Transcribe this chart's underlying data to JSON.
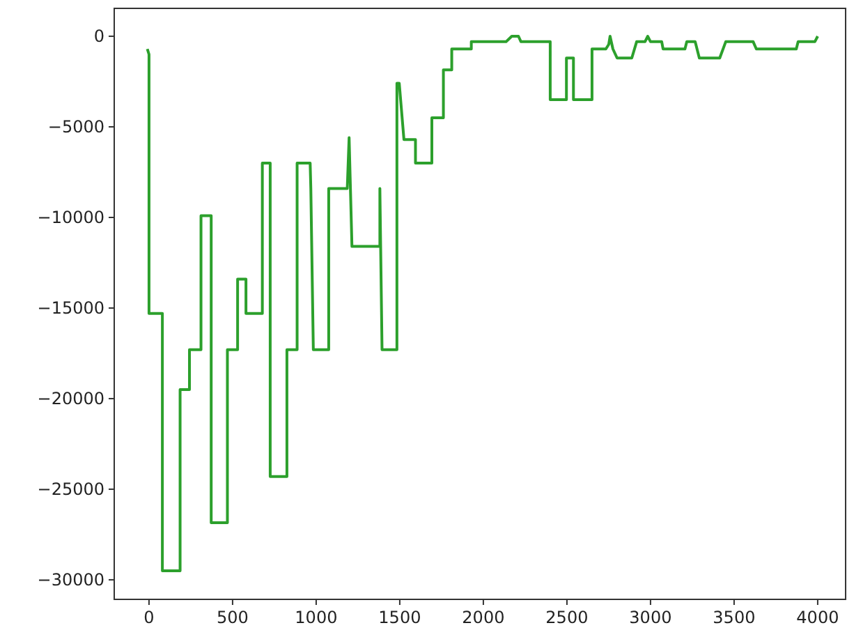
{
  "chart_data": {
    "type": "line",
    "xlim": [
      -208,
      4167
    ],
    "ylim": [
      -31080,
      1540
    ],
    "xticks": [
      0,
      500,
      1000,
      1500,
      2000,
      2500,
      3000,
      3500,
      4000
    ],
    "yticks": [
      {
        "value": 0,
        "label": "0"
      },
      {
        "value": -5000,
        "label": "−5000"
      },
      {
        "value": -10000,
        "label": "−10000"
      },
      {
        "value": -15000,
        "label": "−15000"
      },
      {
        "value": -20000,
        "label": "−20000"
      },
      {
        "value": -25000,
        "label": "−25000"
      },
      {
        "value": -30000,
        "label": "−30000"
      }
    ],
    "grid": false,
    "marker": "none",
    "line_style": "solid",
    "series": [
      {
        "color": "#2ca02c",
        "x": [
          -10,
          0,
          0,
          80,
          80,
          186,
          186,
          242,
          242,
          311,
          311,
          372,
          372,
          469,
          469,
          530,
          530,
          580,
          580,
          678,
          678,
          725,
          725,
          825,
          825,
          886,
          886,
          964,
          968,
          983,
          1075,
          1075,
          1186,
          1197,
          1214,
          1381,
          1381,
          1394,
          1483,
          1483,
          1497,
          1525,
          1594,
          1594,
          1692,
          1692,
          1706,
          1761,
          1761,
          1811,
          1811,
          1928,
          1928,
          2136,
          2170,
          2210,
          2225,
          2400,
          2400,
          2497,
          2497,
          2539,
          2539,
          2650,
          2650,
          2733,
          2750,
          2758,
          2775,
          2800,
          2888,
          2917,
          2967,
          2983,
          3000,
          3067,
          3075,
          3206,
          3217,
          3267,
          3292,
          3414,
          3450,
          3614,
          3633,
          3872,
          3883,
          3983,
          4000
        ],
        "values": [
          -700,
          -1000,
          -15300,
          -15300,
          -29500,
          -29500,
          -19500,
          -19500,
          -17300,
          -17300,
          -9900,
          -9900,
          -26850,
          -26850,
          -17300,
          -17300,
          -13400,
          -13400,
          -15300,
          -15300,
          -7000,
          -7000,
          -24300,
          -24300,
          -17300,
          -17300,
          -7000,
          -7000,
          -8400,
          -17300,
          -17300,
          -8400,
          -8400,
          -5600,
          -11600,
          -11600,
          -8400,
          -17300,
          -17300,
          -2600,
          -2600,
          -5700,
          -5700,
          -7000,
          -7000,
          -4500,
          -4500,
          -4500,
          -1850,
          -1850,
          -700,
          -700,
          -300,
          -300,
          0,
          0,
          -300,
          -300,
          -3500,
          -3500,
          -1200,
          -1200,
          -3500,
          -3500,
          -700,
          -700,
          -450,
          0,
          -700,
          -1200,
          -1200,
          -300,
          -300,
          0,
          -300,
          -300,
          -700,
          -700,
          -300,
          -300,
          -1200,
          -1200,
          -300,
          -300,
          -700,
          -700,
          -300,
          -300,
          0
        ]
      }
    ]
  }
}
